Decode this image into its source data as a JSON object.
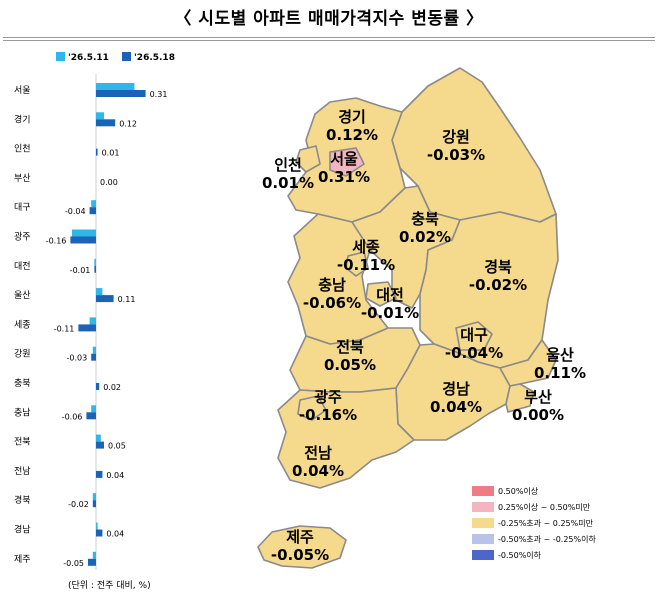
{
  "title": "〈  시도별 아파트 매매가격지수 변동률  〉",
  "legend": [
    {
      "label": "'26.5.11",
      "color": "#2fb7ea"
    },
    {
      "label": "'26.5.18",
      "color": "#1b63b6"
    }
  ],
  "chart_data": {
    "type": "bar",
    "orientation": "horizontal",
    "categories": [
      "서울",
      "경기",
      "인천",
      "부산",
      "대구",
      "광주",
      "대전",
      "울산",
      "세종",
      "강원",
      "충북",
      "충남",
      "전북",
      "전남",
      "경북",
      "경남",
      "제주"
    ],
    "series": [
      {
        "name": "'26.5.11",
        "values": [
          0.24,
          0.05,
          0.0,
          0.0,
          -0.03,
          -0.15,
          -0.01,
          0.04,
          -0.04,
          -0.02,
          0.0,
          -0.03,
          0.03,
          0.0,
          -0.02,
          0.01,
          -0.02
        ]
      },
      {
        "name": "'26.5.18",
        "values": [
          0.31,
          0.12,
          0.01,
          0.0,
          -0.04,
          -0.16,
          -0.01,
          0.11,
          -0.11,
          -0.03,
          0.02,
          -0.06,
          0.05,
          0.04,
          -0.02,
          0.04,
          -0.05
        ]
      }
    ],
    "data_labels": [
      "0.31",
      "0.12",
      "0.01",
      "0.00",
      "-0.04",
      "-0.16",
      "-0.01",
      "0.11",
      "-0.11",
      "-0.03",
      "0.02",
      "-0.06",
      "0.05",
      "0.04",
      "-0.02",
      "0.04",
      "-0.05"
    ],
    "xlabel": "",
    "ylabel": ""
  },
  "unit_note": "(단위 : 전주 대비, %)",
  "map_regions": [
    {
      "key": "gyeonggi",
      "name": "경기",
      "value": "0.12%",
      "color": "#f5d98c"
    },
    {
      "key": "gangwon",
      "name": "강원",
      "value": "-0.03%",
      "color": "#f5d98c"
    },
    {
      "key": "incheon",
      "name": "인천",
      "value": "0.01%",
      "color": "#f5d98c"
    },
    {
      "key": "seoul",
      "name": "서울",
      "value": "0.31%",
      "color": "#f3b6c0"
    },
    {
      "key": "chungbuk",
      "name": "충북",
      "value": "0.02%",
      "color": "#f5d98c"
    },
    {
      "key": "sejong",
      "name": "세종",
      "value": "-0.11%",
      "color": "#f5d98c"
    },
    {
      "key": "gyeongbuk",
      "name": "경북",
      "value": "-0.02%",
      "color": "#f5d98c"
    },
    {
      "key": "chungnam",
      "name": "충남",
      "value": "-0.06%",
      "color": "#f5d98c"
    },
    {
      "key": "daejeon",
      "name": "대전",
      "value": "-0.01%",
      "color": "#f5d98c"
    },
    {
      "key": "jeonbuk",
      "name": "전북",
      "value": "0.05%",
      "color": "#f5d98c"
    },
    {
      "key": "daegu",
      "name": "대구",
      "value": "-0.04%",
      "color": "#f5d98c"
    },
    {
      "key": "ulsan",
      "name": "울산",
      "value": "0.11%",
      "color": "#f5d98c"
    },
    {
      "key": "gwangju",
      "name": "광주",
      "value": "-0.16%",
      "color": "#f5d98c"
    },
    {
      "key": "gyeongnam",
      "name": "경남",
      "value": "0.04%",
      "color": "#f5d98c"
    },
    {
      "key": "busan",
      "name": "부산",
      "value": "0.00%",
      "color": "#f5d98c"
    },
    {
      "key": "jeonnam",
      "name": "전남",
      "value": "0.04%",
      "color": "#f5d98c"
    },
    {
      "key": "jeju",
      "name": "제주",
      "value": "-0.05%",
      "color": "#f5d98c"
    }
  ],
  "map_legend": [
    {
      "label": "0.50%이상",
      "color": "#ee7c84"
    },
    {
      "label": "0.25%이상 ~ 0.50%미만",
      "color": "#f3b6c0"
    },
    {
      "label": "-0.25%초과 ~ 0.25%미만",
      "color": "#f5d98c"
    },
    {
      "label": "-0.50%초과 ~ -0.25%이하",
      "color": "#b9c3ea"
    },
    {
      "label": "-0.50%이하",
      "color": "#4a67c9"
    }
  ]
}
